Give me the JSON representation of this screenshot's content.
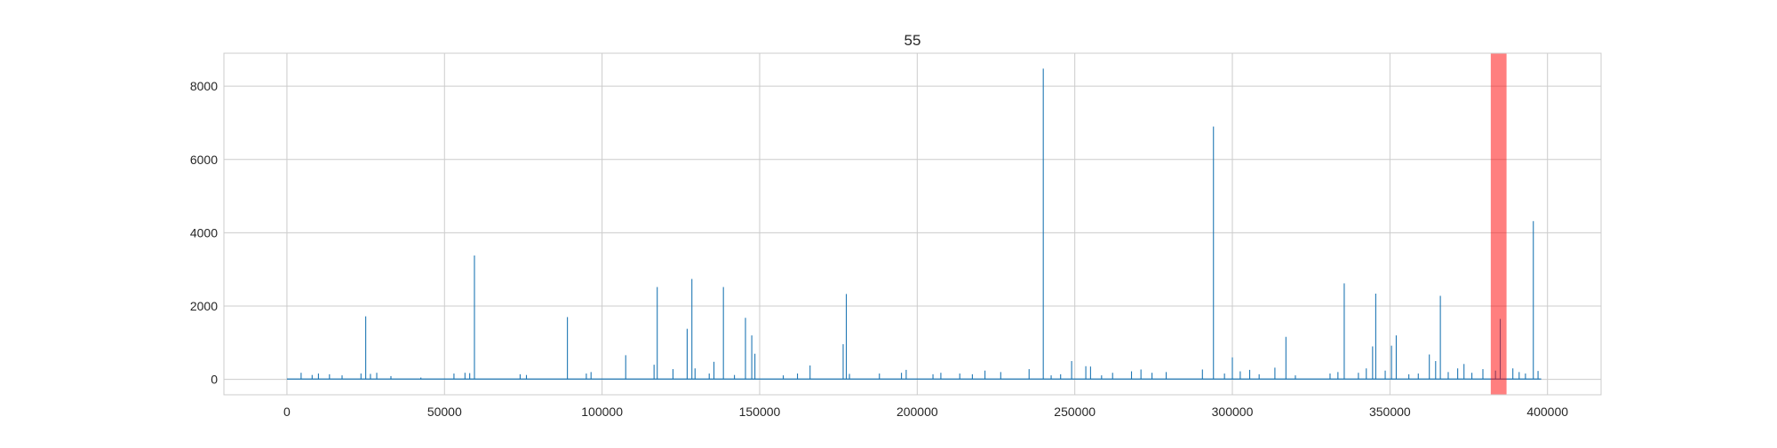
{
  "chart_data": {
    "type": "line",
    "title": "55",
    "xlabel": "",
    "ylabel": "",
    "xlim": [
      -20000,
      417000
    ],
    "ylim": [
      -420,
      8900
    ],
    "x_ticks": [
      0,
      50000,
      100000,
      150000,
      200000,
      250000,
      300000,
      350000,
      400000
    ],
    "x_tick_labels": [
      "0",
      "50000",
      "100000",
      "150000",
      "200000",
      "250000",
      "300000",
      "350000",
      "400000"
    ],
    "y_ticks": [
      0,
      2000,
      4000,
      6000,
      8000
    ],
    "y_tick_labels": [
      "0",
      "2000",
      "4000",
      "6000",
      "8000"
    ],
    "grid": true,
    "series_color": "#1f77b4",
    "highlight_color": "#ff0000",
    "highlight_span": {
      "x_start": 382000,
      "x_end": 387000
    },
    "series": [
      {
        "baseline": 10,
        "spikes": [
          [
            4500,
            180
          ],
          [
            8000,
            120
          ],
          [
            10000,
            160
          ],
          [
            13500,
            140
          ],
          [
            17500,
            110
          ],
          [
            23500,
            160
          ],
          [
            25000,
            1720
          ],
          [
            26500,
            150
          ],
          [
            28500,
            180
          ],
          [
            33000,
            90
          ],
          [
            42500,
            50
          ],
          [
            53000,
            160
          ],
          [
            56500,
            180
          ],
          [
            58000,
            170
          ],
          [
            59500,
            3380
          ],
          [
            74000,
            140
          ],
          [
            76000,
            120
          ],
          [
            89000,
            1700
          ],
          [
            95000,
            160
          ],
          [
            96500,
            200
          ],
          [
            107500,
            660
          ],
          [
            116500,
            400
          ],
          [
            117500,
            2520
          ],
          [
            122500,
            280
          ],
          [
            127000,
            1380
          ],
          [
            128500,
            2740
          ],
          [
            129500,
            300
          ],
          [
            134000,
            160
          ],
          [
            135500,
            480
          ],
          [
            138500,
            2520
          ],
          [
            142000,
            120
          ],
          [
            145500,
            1680
          ],
          [
            147500,
            1200
          ],
          [
            148500,
            700
          ],
          [
            157500,
            110
          ],
          [
            162000,
            160
          ],
          [
            166000,
            380
          ],
          [
            176500,
            960
          ],
          [
            177500,
            2330
          ],
          [
            178500,
            150
          ],
          [
            188000,
            160
          ],
          [
            195000,
            180
          ],
          [
            196500,
            260
          ],
          [
            205000,
            140
          ],
          [
            207500,
            180
          ],
          [
            213500,
            160
          ],
          [
            217500,
            140
          ],
          [
            221500,
            240
          ],
          [
            226500,
            200
          ],
          [
            235500,
            280
          ],
          [
            240000,
            8480
          ],
          [
            242500,
            110
          ],
          [
            245500,
            140
          ],
          [
            249000,
            500
          ],
          [
            253500,
            360
          ],
          [
            255000,
            350
          ],
          [
            258500,
            110
          ],
          [
            262000,
            180
          ],
          [
            268000,
            220
          ],
          [
            271000,
            270
          ],
          [
            274500,
            180
          ],
          [
            279000,
            200
          ],
          [
            290500,
            270
          ],
          [
            294000,
            6900
          ],
          [
            297500,
            160
          ],
          [
            300000,
            600
          ],
          [
            302500,
            220
          ],
          [
            305500,
            260
          ],
          [
            308500,
            140
          ],
          [
            313500,
            320
          ],
          [
            317000,
            1160
          ],
          [
            320000,
            110
          ],
          [
            331000,
            160
          ],
          [
            333500,
            200
          ],
          [
            335500,
            2620
          ],
          [
            340000,
            180
          ],
          [
            342500,
            300
          ],
          [
            344500,
            900
          ],
          [
            345500,
            2340
          ],
          [
            348500,
            240
          ],
          [
            350500,
            920
          ],
          [
            352000,
            1200
          ],
          [
            356000,
            140
          ],
          [
            359000,
            160
          ],
          [
            362500,
            680
          ],
          [
            364500,
            500
          ],
          [
            366000,
            2280
          ],
          [
            368500,
            200
          ],
          [
            371500,
            300
          ],
          [
            373500,
            420
          ],
          [
            376000,
            180
          ],
          [
            379500,
            280
          ],
          [
            383500,
            240
          ],
          [
            385000,
            1650
          ],
          [
            389000,
            300
          ],
          [
            391000,
            200
          ],
          [
            393000,
            160
          ],
          [
            395500,
            4320
          ],
          [
            397000,
            230
          ]
        ]
      }
    ]
  }
}
